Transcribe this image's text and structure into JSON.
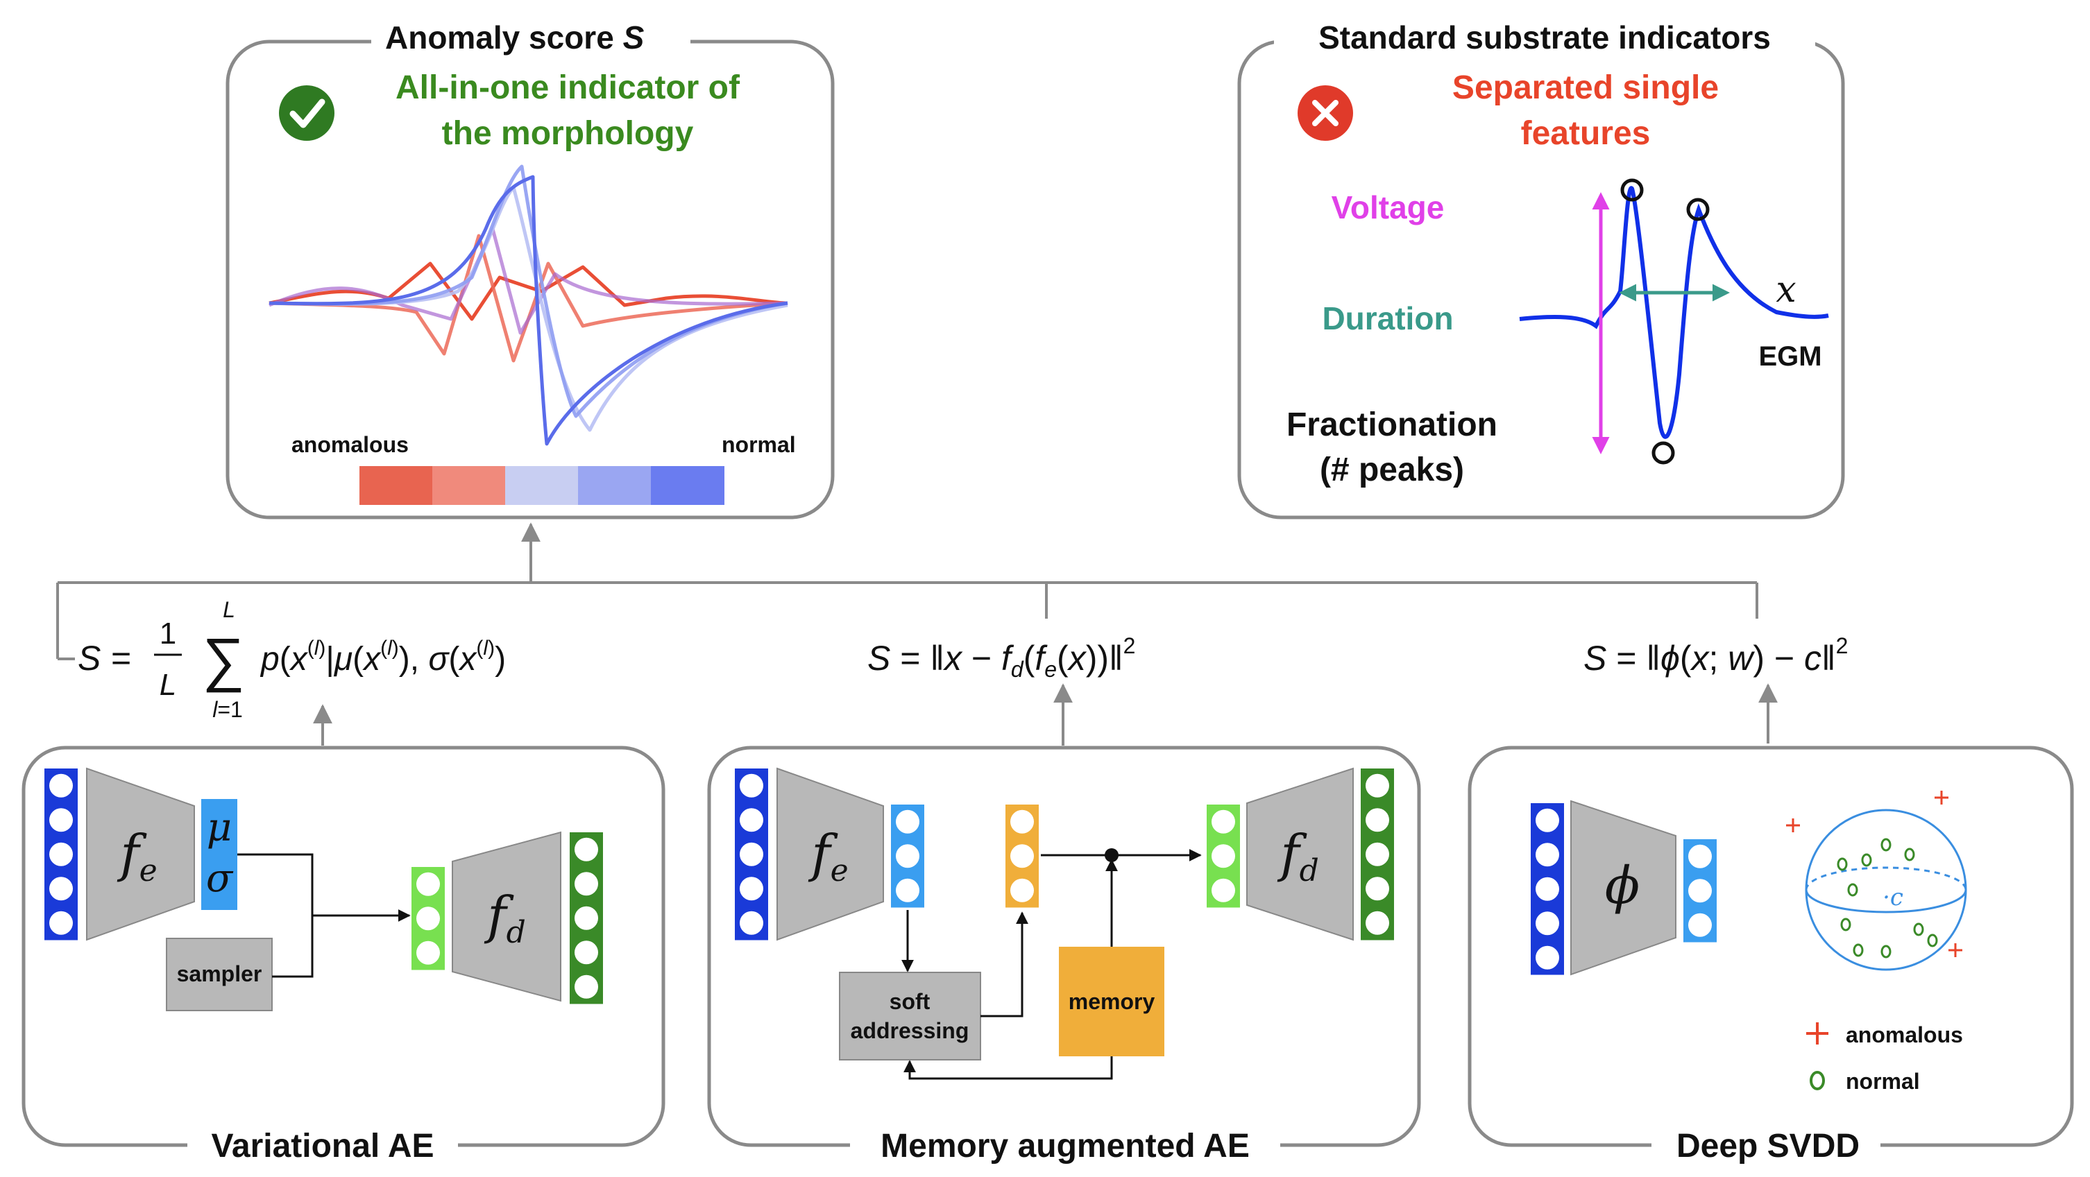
{
  "colors": {
    "panel_border": "#8a8a8a",
    "connector": "#8a8a8a",
    "good_green": "#3a8a1f",
    "bad_red": "#e8442a",
    "voltage_magenta": "#e040e8",
    "duration_teal": "#3a9a8a",
    "egm_blue": "#1030e8",
    "input_blue": "#1a3ad8",
    "latent_blue": "#3a9ef0",
    "latent_green": "#78e050",
    "output_green": "#3a8a28",
    "memory_orange": "#f0ae3a",
    "trapezoid_gray": "#b8b8b8",
    "anomalous_red": "#e85a48",
    "normal_blue": "#6878ee"
  },
  "anomaly_panel": {
    "title_text": "Anomaly score ",
    "title_symbol": "S",
    "check_icon": "check-circle-icon",
    "headline_line1": "All-in-one indicator of",
    "headline_line2": "the morphology",
    "scale_left_label": "anomalous",
    "scale_right_label": "normal",
    "scale_colors": [
      "#e86450",
      "#f08a7c",
      "#c8cef2",
      "#9aa6f2",
      "#6a7cf0"
    ]
  },
  "standard_panel": {
    "title": "Standard substrate indicators",
    "cross_icon": "x-circle-icon",
    "headline_line1": "Separated single",
    "headline_line2": "features",
    "voltage_label": "Voltage",
    "duration_label": "Duration",
    "fractionation_line1": "Fractionation",
    "fractionation_line2": "(# peaks)",
    "x_symbol": "x",
    "egm_label": "EGM"
  },
  "formulas": {
    "vae": "S = (1/L) Σ p(x^(l) | μ(x^(l)), σ(x^(l)))",
    "memae": "S = ‖x − f_d(f_e(x))‖²",
    "svdd": "S = ‖φ(x; w) − c‖²"
  },
  "vae_panel": {
    "title": "Variational AE",
    "encoder_symbol": "f",
    "encoder_sub": "e",
    "mu_symbol": "μ",
    "sigma_symbol": "σ",
    "sampler_label": "sampler",
    "decoder_symbol": "f",
    "decoder_sub": "d"
  },
  "memae_panel": {
    "title": "Memory augmented AE",
    "encoder_symbol": "f",
    "encoder_sub": "e",
    "soft_line1": "soft",
    "soft_line2": "addressing",
    "memory_label": "memory",
    "decoder_symbol": "f",
    "decoder_sub": "d"
  },
  "svdd_panel": {
    "title": "Deep SVDD",
    "phi_symbol": "ϕ",
    "center_label": "·c",
    "legend_anomalous": "anomalous",
    "legend_normal": "normal"
  }
}
